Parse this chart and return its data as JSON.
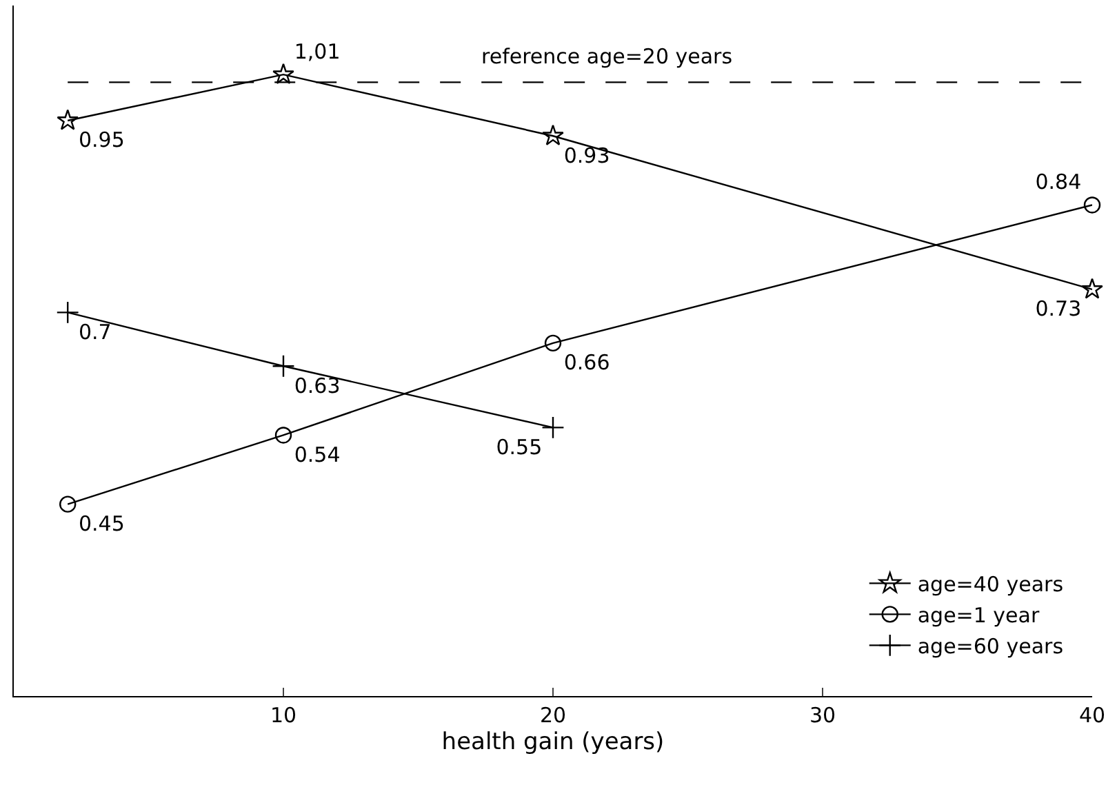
{
  "chart_data": {
    "type": "line",
    "xlabel": "health gain (years)",
    "series": [
      {
        "name": "age=40 years",
        "color": "#000000",
        "marker": "star",
        "x": [
          2,
          10,
          20,
          40
        ],
        "values": [
          0.95,
          1.01,
          0.93,
          0.73
        ],
        "value_labels": [
          "0.95",
          "1,01",
          "0.93",
          "0.73"
        ]
      },
      {
        "name": "age=1 year",
        "color": "#000000",
        "marker": "circle",
        "x": [
          2,
          10,
          20,
          40
        ],
        "values": [
          0.45,
          0.54,
          0.66,
          0.84
        ],
        "value_labels": [
          "0.45",
          "0.54",
          "0.66",
          "0.84"
        ]
      },
      {
        "name": "age=60 years",
        "color": "#000000",
        "marker": "cross",
        "x": [
          2,
          10,
          20
        ],
        "values": [
          0.7,
          0.63,
          0.55
        ],
        "value_labels": [
          "0.7",
          "0.63",
          "0.55"
        ]
      }
    ],
    "ref_lines": [
      {
        "axis": "y",
        "value": 1.0,
        "color": "#000000",
        "line_style": "dashed"
      }
    ],
    "annotations": [
      "reference age=20 years"
    ],
    "xlim": [
      0,
      40
    ],
    "xticks": [
      10,
      20,
      30,
      40
    ],
    "ylim": [
      0.2,
      1.1
    ],
    "tick_labels": "x",
    "legend": "bottom right",
    "line_style": "solid"
  }
}
